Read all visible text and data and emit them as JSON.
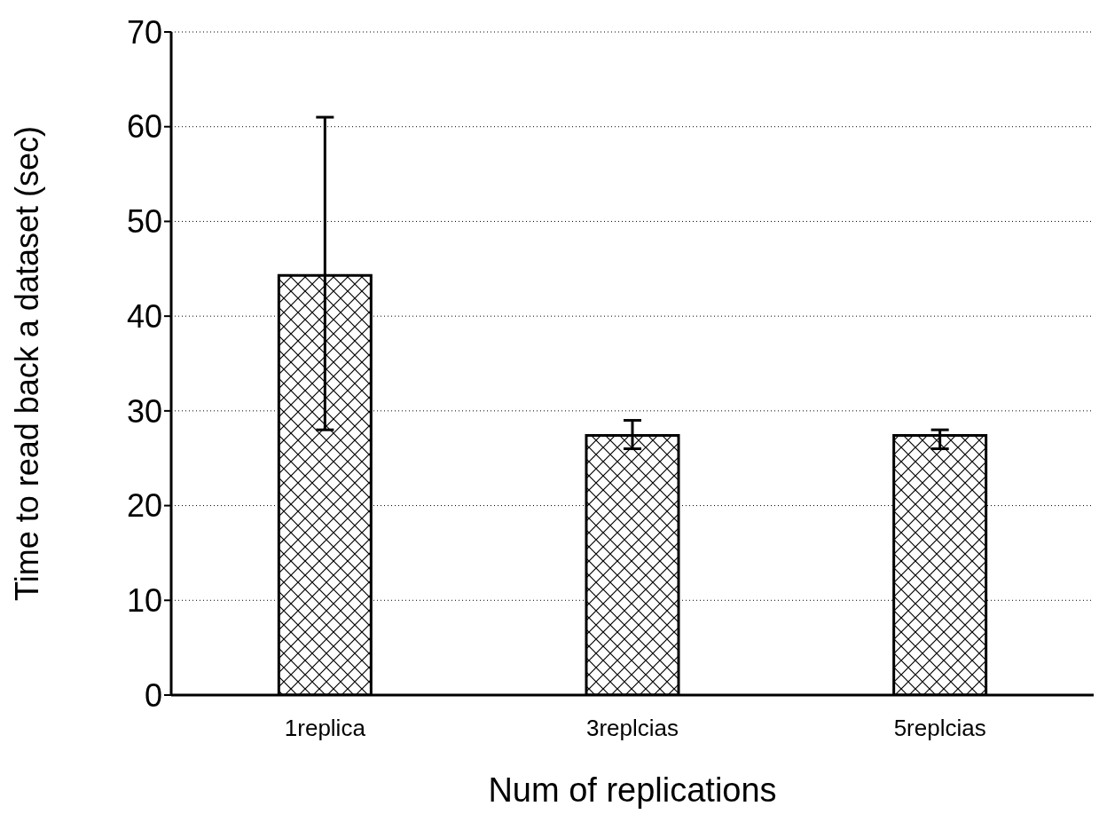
{
  "chart_data": {
    "type": "bar",
    "xlabel": "Num of replications",
    "ylabel": "Time to read back a dataset (sec)",
    "categories": [
      "1replica",
      "3replcias",
      "5replcias"
    ],
    "values": [
      44.3,
      27.4,
      27.4
    ],
    "errors": [
      [
        28,
        61
      ],
      [
        26,
        29
      ],
      [
        26,
        28
      ]
    ],
    "color": "#000000",
    "ylim": [
      0,
      70
    ],
    "yticks": [
      0,
      10,
      20,
      30,
      40,
      50,
      60,
      70
    ],
    "grid": "y"
  }
}
